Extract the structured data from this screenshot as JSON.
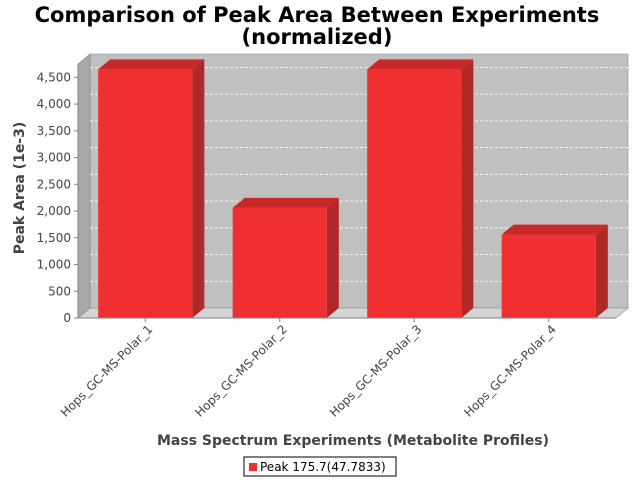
{
  "chart_data": {
    "type": "bar",
    "title_lines": [
      "Comparison of Peak Area Between Experiments",
      "(normalized)"
    ],
    "xlabel": "Mass Spectrum Experiments (Metabolite Profiles)",
    "ylabel": "Peak Area (1e-3)",
    "categories": [
      "Hops_GC-MS-Polar_1",
      "Hops_GC-MS-Polar_2",
      "Hops_GC-MS-Polar_3",
      "Hops_GC-MS-Polar_4"
    ],
    "series": [
      {
        "name": "Peak 175.7(47.7833)",
        "values": [
          4650,
          2060,
          4650,
          1560
        ],
        "color": "#f03030"
      }
    ],
    "ylim": [
      0,
      4750
    ],
    "yticks": [
      0,
      500,
      1000,
      1500,
      2000,
      2500,
      3000,
      3500,
      4000,
      4500
    ],
    "ytick_labels": [
      "0",
      "500",
      "1,000",
      "1,500",
      "2,000",
      "2,500",
      "3,000",
      "3,500",
      "4,000",
      "4,500"
    ],
    "grid": true,
    "legend_position": "bottom",
    "three_d": true
  },
  "colors": {
    "plot_background": "#c0c0c0",
    "plot_side": "#a8a8a8",
    "plot_floor": "#d4d4d4",
    "bar_front": "#f03030",
    "bar_top": "#c82828",
    "bar_side": "#b02828"
  }
}
